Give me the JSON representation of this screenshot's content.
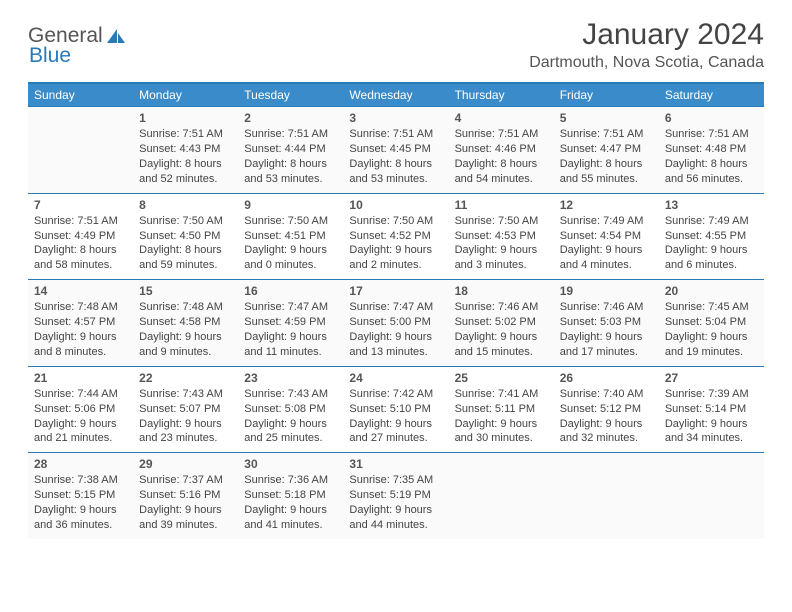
{
  "logo": {
    "part1": "General",
    "part2": "Blue"
  },
  "title": "January 2024",
  "location": "Dartmouth, Nova Scotia, Canada",
  "colors": {
    "header_bg": "#3a8bc9",
    "border": "#2a7ab8",
    "text": "#444444",
    "logo_blue": "#2a7ab8"
  },
  "weekdays": [
    "Sunday",
    "Monday",
    "Tuesday",
    "Wednesday",
    "Thursday",
    "Friday",
    "Saturday"
  ],
  "weeks": [
    [
      null,
      {
        "d": "1",
        "sr": "7:51 AM",
        "ss": "4:43 PM",
        "dl1": "Daylight: 8 hours",
        "dl2": "and 52 minutes."
      },
      {
        "d": "2",
        "sr": "7:51 AM",
        "ss": "4:44 PM",
        "dl1": "Daylight: 8 hours",
        "dl2": "and 53 minutes."
      },
      {
        "d": "3",
        "sr": "7:51 AM",
        "ss": "4:45 PM",
        "dl1": "Daylight: 8 hours",
        "dl2": "and 53 minutes."
      },
      {
        "d": "4",
        "sr": "7:51 AM",
        "ss": "4:46 PM",
        "dl1": "Daylight: 8 hours",
        "dl2": "and 54 minutes."
      },
      {
        "d": "5",
        "sr": "7:51 AM",
        "ss": "4:47 PM",
        "dl1": "Daylight: 8 hours",
        "dl2": "and 55 minutes."
      },
      {
        "d": "6",
        "sr": "7:51 AM",
        "ss": "4:48 PM",
        "dl1": "Daylight: 8 hours",
        "dl2": "and 56 minutes."
      }
    ],
    [
      {
        "d": "7",
        "sr": "7:51 AM",
        "ss": "4:49 PM",
        "dl1": "Daylight: 8 hours",
        "dl2": "and 58 minutes."
      },
      {
        "d": "8",
        "sr": "7:50 AM",
        "ss": "4:50 PM",
        "dl1": "Daylight: 8 hours",
        "dl2": "and 59 minutes."
      },
      {
        "d": "9",
        "sr": "7:50 AM",
        "ss": "4:51 PM",
        "dl1": "Daylight: 9 hours",
        "dl2": "and 0 minutes."
      },
      {
        "d": "10",
        "sr": "7:50 AM",
        "ss": "4:52 PM",
        "dl1": "Daylight: 9 hours",
        "dl2": "and 2 minutes."
      },
      {
        "d": "11",
        "sr": "7:50 AM",
        "ss": "4:53 PM",
        "dl1": "Daylight: 9 hours",
        "dl2": "and 3 minutes."
      },
      {
        "d": "12",
        "sr": "7:49 AM",
        "ss": "4:54 PM",
        "dl1": "Daylight: 9 hours",
        "dl2": "and 4 minutes."
      },
      {
        "d": "13",
        "sr": "7:49 AM",
        "ss": "4:55 PM",
        "dl1": "Daylight: 9 hours",
        "dl2": "and 6 minutes."
      }
    ],
    [
      {
        "d": "14",
        "sr": "7:48 AM",
        "ss": "4:57 PM",
        "dl1": "Daylight: 9 hours",
        "dl2": "and 8 minutes."
      },
      {
        "d": "15",
        "sr": "7:48 AM",
        "ss": "4:58 PM",
        "dl1": "Daylight: 9 hours",
        "dl2": "and 9 minutes."
      },
      {
        "d": "16",
        "sr": "7:47 AM",
        "ss": "4:59 PM",
        "dl1": "Daylight: 9 hours",
        "dl2": "and 11 minutes."
      },
      {
        "d": "17",
        "sr": "7:47 AM",
        "ss": "5:00 PM",
        "dl1": "Daylight: 9 hours",
        "dl2": "and 13 minutes."
      },
      {
        "d": "18",
        "sr": "7:46 AM",
        "ss": "5:02 PM",
        "dl1": "Daylight: 9 hours",
        "dl2": "and 15 minutes."
      },
      {
        "d": "19",
        "sr": "7:46 AM",
        "ss": "5:03 PM",
        "dl1": "Daylight: 9 hours",
        "dl2": "and 17 minutes."
      },
      {
        "d": "20",
        "sr": "7:45 AM",
        "ss": "5:04 PM",
        "dl1": "Daylight: 9 hours",
        "dl2": "and 19 minutes."
      }
    ],
    [
      {
        "d": "21",
        "sr": "7:44 AM",
        "ss": "5:06 PM",
        "dl1": "Daylight: 9 hours",
        "dl2": "and 21 minutes."
      },
      {
        "d": "22",
        "sr": "7:43 AM",
        "ss": "5:07 PM",
        "dl1": "Daylight: 9 hours",
        "dl2": "and 23 minutes."
      },
      {
        "d": "23",
        "sr": "7:43 AM",
        "ss": "5:08 PM",
        "dl1": "Daylight: 9 hours",
        "dl2": "and 25 minutes."
      },
      {
        "d": "24",
        "sr": "7:42 AM",
        "ss": "5:10 PM",
        "dl1": "Daylight: 9 hours",
        "dl2": "and 27 minutes."
      },
      {
        "d": "25",
        "sr": "7:41 AM",
        "ss": "5:11 PM",
        "dl1": "Daylight: 9 hours",
        "dl2": "and 30 minutes."
      },
      {
        "d": "26",
        "sr": "7:40 AM",
        "ss": "5:12 PM",
        "dl1": "Daylight: 9 hours",
        "dl2": "and 32 minutes."
      },
      {
        "d": "27",
        "sr": "7:39 AM",
        "ss": "5:14 PM",
        "dl1": "Daylight: 9 hours",
        "dl2": "and 34 minutes."
      }
    ],
    [
      {
        "d": "28",
        "sr": "7:38 AM",
        "ss": "5:15 PM",
        "dl1": "Daylight: 9 hours",
        "dl2": "and 36 minutes."
      },
      {
        "d": "29",
        "sr": "7:37 AM",
        "ss": "5:16 PM",
        "dl1": "Daylight: 9 hours",
        "dl2": "and 39 minutes."
      },
      {
        "d": "30",
        "sr": "7:36 AM",
        "ss": "5:18 PM",
        "dl1": "Daylight: 9 hours",
        "dl2": "and 41 minutes."
      },
      {
        "d": "31",
        "sr": "7:35 AM",
        "ss": "5:19 PM",
        "dl1": "Daylight: 9 hours",
        "dl2": "and 44 minutes."
      },
      null,
      null,
      null
    ]
  ]
}
